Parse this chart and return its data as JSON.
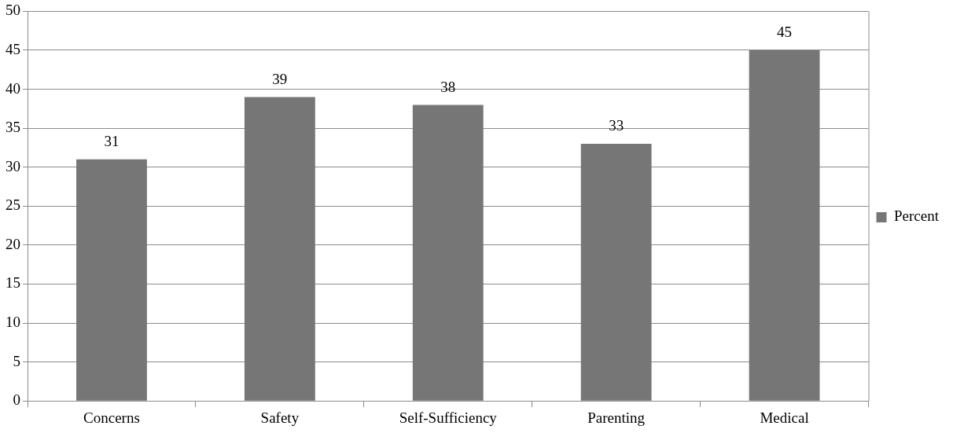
{
  "chart_data": {
    "type": "bar",
    "categories": [
      "Concerns",
      "Safety",
      "Self-Sufficiency",
      "Parenting",
      "Medical"
    ],
    "series": [
      {
        "name": "Percent",
        "color": "#767676",
        "values": [
          31,
          39,
          38,
          33,
          45
        ]
      }
    ],
    "ylim": [
      0,
      50
    ],
    "yticks": [
      0,
      5,
      10,
      15,
      20,
      25,
      30,
      35,
      40,
      45,
      50
    ],
    "grid": "y",
    "legend": "right",
    "data_labels": true
  }
}
